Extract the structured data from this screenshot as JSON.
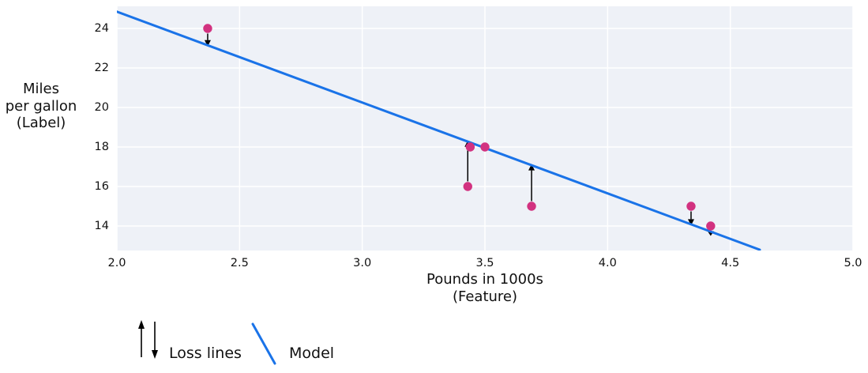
{
  "chart_data": {
    "type": "scatter",
    "title": "",
    "xlabel_lines": [
      "Pounds in 1000s",
      "(Feature)"
    ],
    "ylabel_lines": [
      "Miles",
      "per gallon",
      "(Label)"
    ],
    "xlim": [
      2.0,
      5.0
    ],
    "ylim": [
      12.76,
      25.12
    ],
    "grid": true,
    "legend_position": "bottom-left",
    "xticks": [
      {
        "value": 2.0,
        "label": "2.0"
      },
      {
        "value": 2.5,
        "label": "2.5"
      },
      {
        "value": 3.0,
        "label": "3.0"
      },
      {
        "value": 3.5,
        "label": "3.5"
      },
      {
        "value": 4.0,
        "label": "4.0"
      },
      {
        "value": 4.5,
        "label": "4.5"
      },
      {
        "value": 5.0,
        "label": "5.0"
      }
    ],
    "yticks": [
      {
        "value": 24,
        "label": "24"
      },
      {
        "value": 22,
        "label": "22"
      },
      {
        "value": 20,
        "label": "20"
      },
      {
        "value": 18,
        "label": "18"
      },
      {
        "value": 16,
        "label": "16"
      },
      {
        "value": 14,
        "label": "14"
      }
    ],
    "points": [
      {
        "x": 2.37,
        "y": 24
      },
      {
        "x": 3.44,
        "y": 18
      },
      {
        "x": 3.5,
        "y": 18
      },
      {
        "x": 3.43,
        "y": 16
      },
      {
        "x": 3.69,
        "y": 15
      },
      {
        "x": 4.34,
        "y": 15
      },
      {
        "x": 4.42,
        "y": 14
      }
    ],
    "model_line": {
      "slope": -4.6,
      "intercept": 34.05,
      "x_start": 2.0,
      "x_end": 4.62
    },
    "loss_lines": [
      {
        "x": 2.37,
        "from": 24,
        "direction": "down"
      },
      {
        "x": 3.43,
        "from": 16,
        "direction": "up"
      },
      {
        "x": 3.69,
        "from": 15,
        "direction": "up"
      },
      {
        "x": 4.34,
        "from": 15,
        "direction": "down"
      },
      {
        "x": 4.42,
        "from": 14,
        "direction": "down"
      }
    ],
    "legend": {
      "loss_label": "Loss lines",
      "model_label": "Model"
    },
    "colors": {
      "model_line": "#1a73e8",
      "point": "#d23280",
      "plot_bg": "#eef1f7",
      "grid": "#ffffff",
      "text": "#111111",
      "arrow": "#000000"
    }
  }
}
